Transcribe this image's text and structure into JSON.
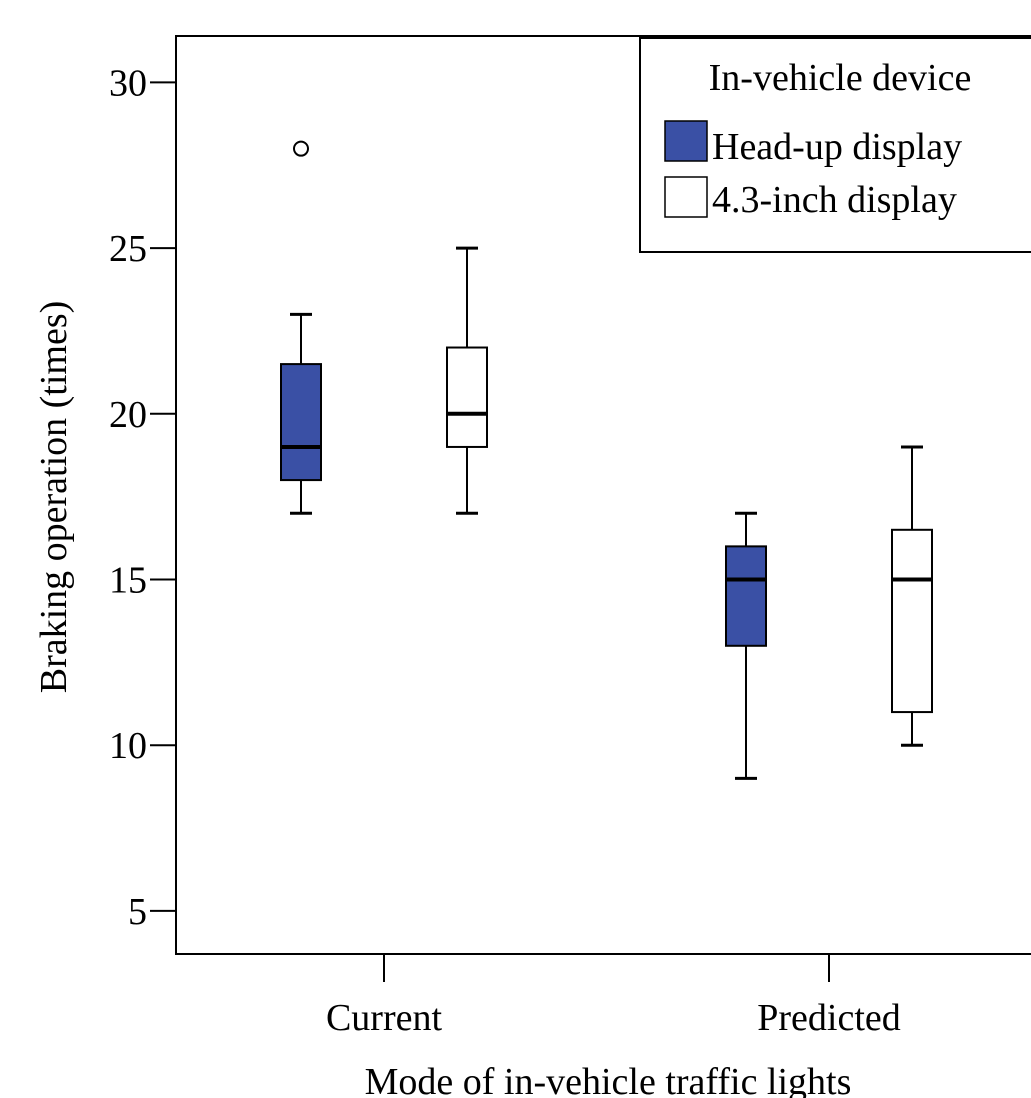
{
  "chart_data": {
    "type": "boxplot",
    "title": "",
    "xlabel": "Mode of in-vehicle traffic lights",
    "ylabel": "Braking operation (times)",
    "categories": [
      "Current",
      "Predicted"
    ],
    "y_ticks": [
      5,
      10,
      15,
      20,
      25,
      30
    ],
    "ylim": [
      3.7,
      31.4
    ],
    "grid": false,
    "legend": {
      "title": "In-vehicle device",
      "placement": "top-right"
    },
    "series": [
      {
        "name": "Head-up display",
        "color": "#3a50a5",
        "boxes": [
          {
            "category": "Current",
            "min": 17,
            "q1": 18,
            "median": 19,
            "q3": 21.5,
            "max": 23,
            "outliers": [
              28
            ]
          },
          {
            "category": "Predicted",
            "min": 9,
            "q1": 13,
            "median": 15,
            "q3": 16,
            "max": 17,
            "outliers": []
          }
        ]
      },
      {
        "name": "4.3-inch display",
        "color": "#ffffff",
        "boxes": [
          {
            "category": "Current",
            "min": 17,
            "q1": 19,
            "median": 20,
            "q3": 22,
            "max": 25,
            "outliers": []
          },
          {
            "category": "Predicted",
            "min": 10,
            "q1": 11,
            "median": 15,
            "q3": 16.5,
            "max": 19,
            "outliers": []
          }
        ]
      }
    ]
  }
}
